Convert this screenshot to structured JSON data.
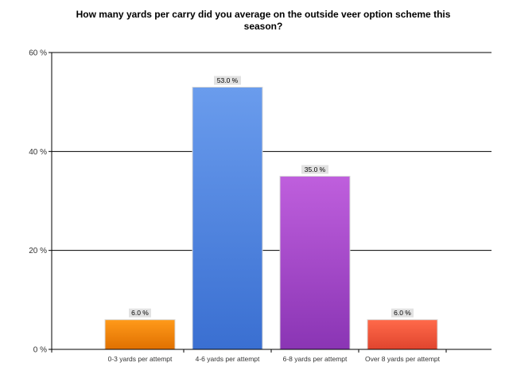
{
  "chart_data": {
    "type": "bar",
    "title_lines": [
      "How many yards per carry did you average on the outside veer option scheme this",
      "season?"
    ],
    "categories": [
      "0-3 yards per attempt",
      "4-6 yards per attempt",
      "6-8 yards per attempt",
      "Over 8 yards per attempt"
    ],
    "values": [
      6.0,
      53.0,
      35.0,
      6.0
    ],
    "data_labels": [
      "6.0 %",
      "53.0 %",
      "35.0 %",
      "6.0 %"
    ],
    "ylim": [
      0,
      60
    ],
    "yticks": [
      0,
      20,
      40,
      60
    ],
    "ytick_labels": [
      "0 %",
      "20 %",
      "40 %",
      "60 %"
    ],
    "grid": true,
    "legend": "none",
    "colors": [
      [
        "#ff9a1a",
        "#e07000"
      ],
      [
        "#6a9ced",
        "#3a6fd1"
      ],
      [
        "#bf5fdd",
        "#8a35b4"
      ],
      [
        "#ff6a4a",
        "#e0442e"
      ]
    ]
  }
}
